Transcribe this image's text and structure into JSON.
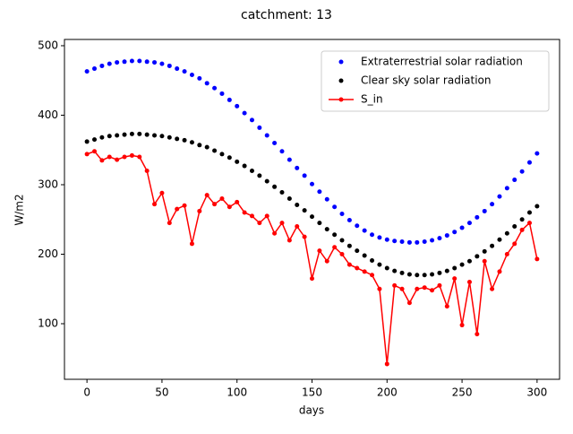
{
  "chart_data": {
    "type": "line",
    "title": "catchment: 13",
    "xlabel": "days",
    "ylabel": "W/m2",
    "x": [
      0,
      5,
      10,
      15,
      20,
      25,
      30,
      35,
      40,
      45,
      50,
      55,
      60,
      65,
      70,
      75,
      80,
      85,
      90,
      95,
      100,
      105,
      110,
      115,
      120,
      125,
      130,
      135,
      140,
      145,
      150,
      155,
      160,
      165,
      170,
      175,
      180,
      185,
      190,
      195,
      200,
      205,
      210,
      215,
      220,
      225,
      230,
      235,
      240,
      245,
      250,
      255,
      260,
      265,
      270,
      275,
      280,
      285,
      290,
      295,
      300
    ],
    "series": [
      {
        "name": "Extraterrestrial solar radiation",
        "color": "#0000ff",
        "style": "markers",
        "values": [
          463,
          467,
          471,
          474,
          476,
          477,
          478,
          478,
          477,
          476,
          474,
          471,
          467,
          463,
          458,
          453,
          446,
          439,
          431,
          422,
          413,
          403,
          393,
          382,
          371,
          360,
          348,
          336,
          324,
          313,
          301,
          290,
          279,
          268,
          258,
          249,
          241,
          234,
          228,
          224,
          221,
          219,
          218,
          217,
          217,
          218,
          220,
          223,
          227,
          232,
          238,
          245,
          253,
          262,
          272,
          283,
          295,
          307,
          319,
          332,
          345
        ]
      },
      {
        "name": "Clear sky solar radiation",
        "color": "#000000",
        "style": "markers",
        "values": [
          362,
          365,
          368,
          370,
          371,
          372,
          373,
          373,
          372,
          371,
          370,
          368,
          366,
          364,
          361,
          357,
          354,
          349,
          344,
          339,
          333,
          327,
          320,
          313,
          305,
          297,
          289,
          280,
          271,
          263,
          254,
          245,
          236,
          228,
          220,
          212,
          205,
          198,
          191,
          185,
          180,
          176,
          173,
          171,
          170,
          170,
          171,
          173,
          176,
          180,
          185,
          190,
          197,
          204,
          212,
          221,
          230,
          240,
          250,
          260,
          269
        ]
      },
      {
        "name": "S_in",
        "color": "#ff0000",
        "style": "line-markers",
        "values": [
          344,
          348,
          335,
          340,
          336,
          340,
          342,
          340,
          320,
          272,
          288,
          245,
          265,
          270,
          215,
          262,
          285,
          272,
          280,
          268,
          275,
          260,
          255,
          245,
          255,
          230,
          245,
          220,
          240,
          225,
          165,
          205,
          190,
          210,
          200,
          185,
          180,
          175,
          170,
          150,
          42,
          155,
          150,
          130,
          150,
          152,
          148,
          155,
          125,
          165,
          98,
          160,
          85,
          190,
          150,
          175,
          200,
          215,
          235,
          245,
          193
        ]
      }
    ],
    "xlim": [
      -15,
      315
    ],
    "ylim": [
      20,
      509
    ],
    "xticks": [
      0,
      50,
      100,
      150,
      200,
      250,
      300
    ],
    "yticks": [
      100,
      200,
      300,
      400,
      500
    ],
    "legend": "upper right"
  }
}
